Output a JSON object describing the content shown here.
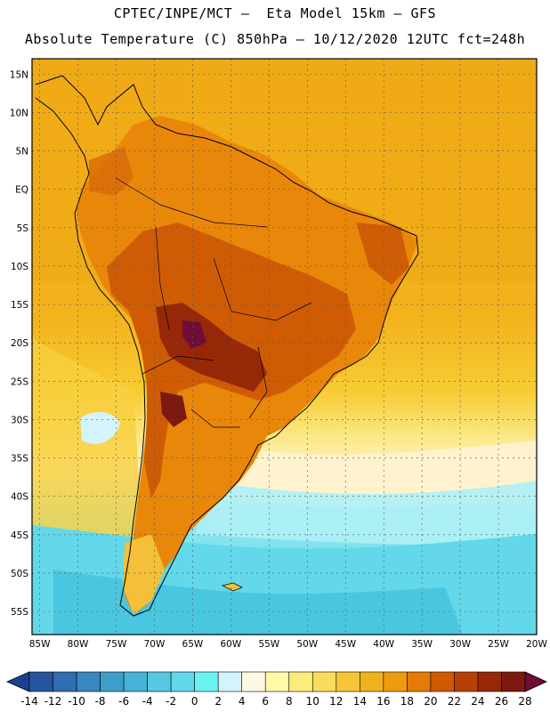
{
  "header": {
    "line1": "CPTEC/INPE/MCT –  Eta Model 15km – GFS",
    "line2": "Absolute Temperature (C) 850hPa – 10/12/2020 12UTC fct=248h"
  },
  "axes": {
    "lat_labels": [
      "15N",
      "10N",
      "5N",
      "EQ",
      "5S",
      "10S",
      "15S",
      "20S",
      "25S",
      "30S",
      "35S",
      "40S",
      "45S",
      "50S",
      "55S"
    ],
    "lat_values": [
      15,
      10,
      5,
      0,
      -5,
      -10,
      -15,
      -20,
      -25,
      -30,
      -35,
      -40,
      -45,
      -50,
      -55
    ],
    "lon_labels": [
      "85W",
      "80W",
      "75W",
      "70W",
      "65W",
      "60W",
      "55W",
      "50W",
      "45W",
      "40W",
      "35W",
      "30W",
      "25W",
      "20W"
    ],
    "lon_values": [
      -85,
      -80,
      -75,
      -70,
      -65,
      -60,
      -55,
      -50,
      -45,
      -40,
      -35,
      -30,
      -25,
      -20
    ],
    "lat_range": [
      -58,
      17
    ],
    "lon_range": [
      -86,
      -20
    ]
  },
  "colorbar": {
    "labels": [
      "-14",
      "-12",
      "-10",
      "-8",
      "-6",
      "-4",
      "-2",
      "0",
      "2",
      "4",
      "6",
      "8",
      "10",
      "12",
      "14",
      "16",
      "18",
      "20",
      "22",
      "24",
      "26",
      "28"
    ],
    "colors": [
      "#1d3f8f",
      "#25559e",
      "#2f6eb0",
      "#3a86be",
      "#3f9ec9",
      "#46b3d6",
      "#56c8e2",
      "#62d8ea",
      "#6bf2f2",
      "#d4f4fb",
      "#fff8e4",
      "#fffaa8",
      "#fcec7c",
      "#f9dc5c",
      "#f5c63a",
      "#f0b21a",
      "#ee9c0e",
      "#e27b08",
      "#cf5a04",
      "#b74006",
      "#962808",
      "#7a1a10",
      "#6e0d38"
    ]
  },
  "legend_shades": {
    "ocean_warm": "#f2ad17",
    "ocean_mid": "#f7cc35",
    "ocean_cool": "#faeb7a",
    "pale": "#fff6d8",
    "cyan": "#6fe8ef",
    "cyan_deep": "#47c5df",
    "land_hot": "#e07a07",
    "land_hotter": "#c95a06",
    "land_peak": "#7a1a10"
  }
}
